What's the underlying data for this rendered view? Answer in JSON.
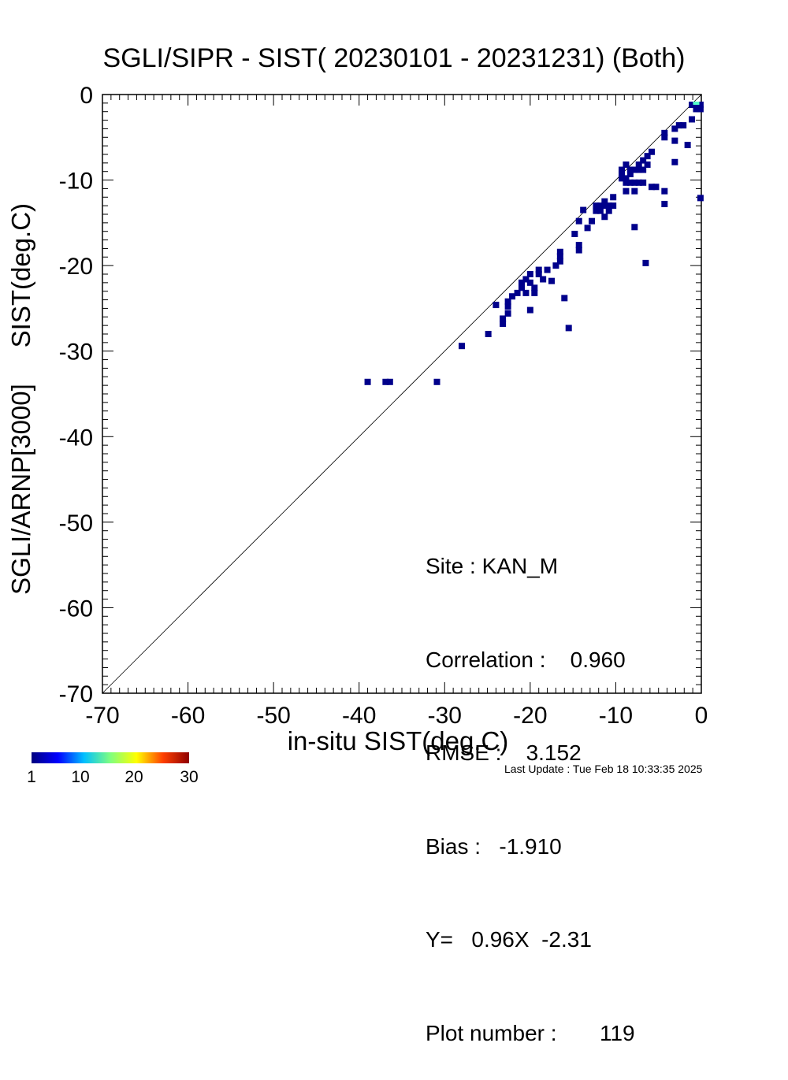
{
  "chart_data": {
    "type": "scatter",
    "title": "SGLI/SIPR - SIST( 20230101 - 20231231) (Both)",
    "xlabel": "in-situ SIST(deg.C)",
    "ylabel": "SGLI/ARNP[3000]     SIST(deg.C)",
    "xlim": [
      -70,
      0
    ],
    "ylim": [
      -70,
      0
    ],
    "xticks": [
      "-70",
      "-60",
      "-50",
      "-40",
      "-30",
      "-20",
      "-10",
      "0"
    ],
    "yticks": [
      "-70",
      "-60",
      "-50",
      "-40",
      "-30",
      "-20",
      "-10",
      "0"
    ],
    "xtick_values": [
      -70,
      -60,
      -50,
      -40,
      -30,
      -20,
      -10,
      0
    ],
    "ytick_values": [
      -70,
      -60,
      -50,
      -40,
      -30,
      -20,
      -10,
      0
    ],
    "reference_line": "1:1",
    "grid": false,
    "points": [
      {
        "x": -39.0,
        "y": -33.6
      },
      {
        "x": -36.9,
        "y": -33.6
      },
      {
        "x": -36.4,
        "y": -33.6
      },
      {
        "x": -30.9,
        "y": -33.6
      },
      {
        "x": -28.0,
        "y": -29.4
      },
      {
        "x": -24.9,
        "y": -28.0
      },
      {
        "x": -24.0,
        "y": -24.6
      },
      {
        "x": -23.2,
        "y": -26.8
      },
      {
        "x": -23.2,
        "y": -26.2
      },
      {
        "x": -22.6,
        "y": -25.6
      },
      {
        "x": -22.6,
        "y": -24.8
      },
      {
        "x": -22.6,
        "y": -24.2
      },
      {
        "x": -22.1,
        "y": -23.6
      },
      {
        "x": -21.5,
        "y": -23.2
      },
      {
        "x": -21.0,
        "y": -22.0
      },
      {
        "x": -21.0,
        "y": -22.6
      },
      {
        "x": -20.5,
        "y": -21.6
      },
      {
        "x": -20.5,
        "y": -23.2
      },
      {
        "x": -20.0,
        "y": -22.0
      },
      {
        "x": -20.0,
        "y": -21.0
      },
      {
        "x": -20.0,
        "y": -25.2
      },
      {
        "x": -19.5,
        "y": -22.6
      },
      {
        "x": -19.5,
        "y": -23.2
      },
      {
        "x": -19.0,
        "y": -21.0
      },
      {
        "x": -19.0,
        "y": -20.5
      },
      {
        "x": -18.5,
        "y": -21.6
      },
      {
        "x": -18.0,
        "y": -20.5
      },
      {
        "x": -17.5,
        "y": -21.8
      },
      {
        "x": -17.0,
        "y": -20.0
      },
      {
        "x": -16.5,
        "y": -19.5
      },
      {
        "x": -16.5,
        "y": -18.9
      },
      {
        "x": -16.5,
        "y": -18.4
      },
      {
        "x": -16.0,
        "y": -23.8
      },
      {
        "x": -15.5,
        "y": -27.3
      },
      {
        "x": -14.8,
        "y": -16.3
      },
      {
        "x": -14.3,
        "y": -17.6
      },
      {
        "x": -14.3,
        "y": -18.2
      },
      {
        "x": -14.3,
        "y": -14.8
      },
      {
        "x": -13.8,
        "y": -13.5
      },
      {
        "x": -13.3,
        "y": -15.6
      },
      {
        "x": -12.8,
        "y": -14.8
      },
      {
        "x": -12.3,
        "y": -13.0
      },
      {
        "x": -12.3,
        "y": -13.6
      },
      {
        "x": -11.8,
        "y": -13.0
      },
      {
        "x": -11.8,
        "y": -13.6
      },
      {
        "x": -11.3,
        "y": -12.5
      },
      {
        "x": -11.3,
        "y": -13.0
      },
      {
        "x": -11.3,
        "y": -14.3
      },
      {
        "x": -10.8,
        "y": -13.0
      },
      {
        "x": -10.8,
        "y": -13.6
      },
      {
        "x": -10.3,
        "y": -12.0
      },
      {
        "x": -10.3,
        "y": -13.0
      },
      {
        "x": -9.3,
        "y": -8.8
      },
      {
        "x": -9.3,
        "y": -9.3
      },
      {
        "x": -9.3,
        "y": -9.8
      },
      {
        "x": -8.8,
        "y": -8.2
      },
      {
        "x": -8.8,
        "y": -9.8
      },
      {
        "x": -8.8,
        "y": -10.3
      },
      {
        "x": -8.8,
        "y": -11.3
      },
      {
        "x": -8.3,
        "y": -8.8
      },
      {
        "x": -8.3,
        "y": -9.3
      },
      {
        "x": -8.3,
        "y": -10.3
      },
      {
        "x": -7.8,
        "y": -8.8
      },
      {
        "x": -7.8,
        "y": -10.3
      },
      {
        "x": -7.8,
        "y": -11.3
      },
      {
        "x": -7.8,
        "y": -15.5
      },
      {
        "x": -7.3,
        "y": -8.2
      },
      {
        "x": -7.3,
        "y": -8.8
      },
      {
        "x": -7.3,
        "y": -10.3
      },
      {
        "x": -6.8,
        "y": -7.7
      },
      {
        "x": -6.8,
        "y": -8.8
      },
      {
        "x": -6.8,
        "y": -10.3
      },
      {
        "x": -6.5,
        "y": -19.7
      },
      {
        "x": -6.3,
        "y": -7.2
      },
      {
        "x": -6.3,
        "y": -8.2
      },
      {
        "x": -5.8,
        "y": -6.7
      },
      {
        "x": -5.8,
        "y": -10.8
      },
      {
        "x": -5.3,
        "y": -10.8
      },
      {
        "x": -4.3,
        "y": -4.5
      },
      {
        "x": -4.3,
        "y": -5.0
      },
      {
        "x": -4.3,
        "y": -11.3
      },
      {
        "x": -4.3,
        "y": -12.8
      },
      {
        "x": -3.1,
        "y": -4.0
      },
      {
        "x": -3.1,
        "y": -5.4
      },
      {
        "x": -3.1,
        "y": -7.9
      },
      {
        "x": -2.6,
        "y": -3.6
      },
      {
        "x": -2.1,
        "y": -3.6
      },
      {
        "x": -1.6,
        "y": -5.9
      },
      {
        "x": -1.1,
        "y": -2.9
      },
      {
        "x": -1.1,
        "y": -1.2
      },
      {
        "x": -0.6,
        "y": -1.2
      },
      {
        "x": -0.6,
        "y": -1.7
      },
      {
        "x": -0.1,
        "y": -1.7
      },
      {
        "x": -0.1,
        "y": -1.2
      },
      {
        "x": -0.1,
        "y": -12.1
      }
    ],
    "hot_points": [
      {
        "x": -0.6,
        "y": -1.2
      }
    ],
    "colorbar": {
      "ticks": [
        "1",
        "10",
        "20",
        "30"
      ],
      "values": [
        1,
        10,
        20,
        30
      ],
      "range": [
        0,
        30
      ]
    },
    "annotations": {
      "site": "Site : KAN_M",
      "correlation": "Correlation :    0.960",
      "rmse": "RMSE :    3.152",
      "bias": "Bias :   -1.910",
      "regression": "Y=   0.96X  -2.31",
      "plot_number": "Plot number :       119"
    }
  },
  "footer": "Last Update : Tue Feb 18 10:33:35 2025",
  "colors": {
    "point": "#00008b",
    "hot_point": "#55ffcc",
    "axis": "#000000"
  }
}
